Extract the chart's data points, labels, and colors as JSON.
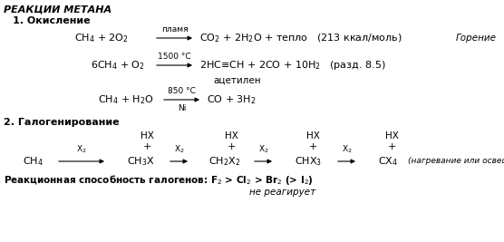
{
  "title": "РЕАКЦИИ МЕТАНА",
  "bg_color": "#ffffff",
  "text_color": "#000000",
  "section1": "1. Окисление",
  "section2": "2. Галогенирование",
  "r1_left": "CH$_4$ + 2O$_2$",
  "r1_arrow_top": "пламя",
  "r1_arrow_bot": "",
  "r1_right": "CO$_2$ + 2H$_2$O + тепло   (213 ккал/моль)",
  "r1_note": "Горение",
  "r2_left": "6CH$_4$ + O$_2$",
  "r2_arrow_top": "1500 °C",
  "r2_right": "2HC≡CH + 2CO + 10H$_2$   (разд. 8.5)",
  "r2_sublabel": "ацетилен",
  "r3_left": "CH$_4$ + H$_2$O",
  "r3_arrow_top": "850 °C",
  "r3_arrow_bot": "Ni",
  "r3_right": "CO + 3H$_2$",
  "hx_labels": [
    "HX",
    "HX",
    "HX",
    "HX"
  ],
  "compounds": [
    "CH$_4$",
    "CH$_3$X",
    "CH$_2$X$_2$",
    "CHX$_3$",
    "CX$_4$"
  ],
  "halogen_note": "(нагревание или освещение)",
  "reactivity": "Реакционная способность галогенов: F$_2$ > Cl$_2$ > Br$_2$ (> I$_2$)",
  "not_react": "не реагирует"
}
